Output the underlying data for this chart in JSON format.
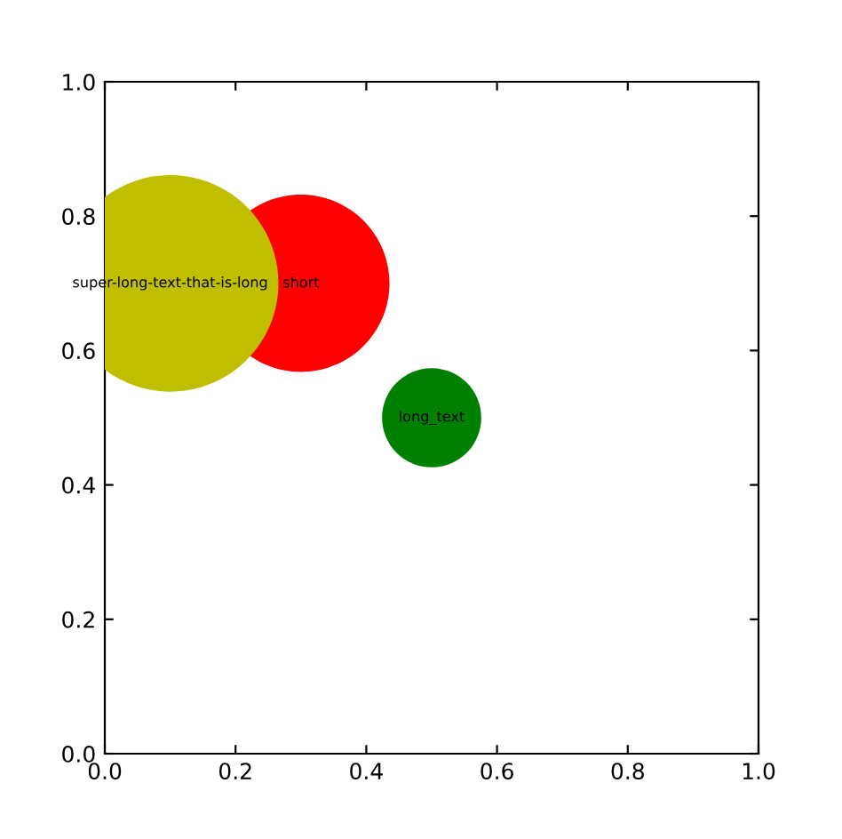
{
  "chart_data": {
    "type": "bubble",
    "x": [
      0.3,
      0.1,
      0.5
    ],
    "values": [
      0.7,
      0.7,
      0.5
    ],
    "sizes": [
      0.67,
      1,
      0.21
    ],
    "colors": [
      "#ff0000",
      "#bfbf00",
      "#008000"
    ],
    "annotations": [
      {
        "text": "short",
        "x": 0.3,
        "y": 0.7
      },
      {
        "text": "super-long-text-that-is-long",
        "x": 0.1,
        "y": 0.7
      },
      {
        "text": "long_text",
        "x": 0.5,
        "y": 0.5
      }
    ],
    "xlim": [
      0,
      1
    ],
    "ylim": [
      0,
      1
    ],
    "xticks": [
      {
        "value": 0,
        "label": "0.0"
      },
      0.2,
      0.4,
      0.6,
      0.8,
      {
        "value": 1,
        "label": "1.0"
      }
    ],
    "yticks": [
      {
        "value": 0,
        "label": "0.0"
      },
      0.2,
      0.4,
      0.6,
      0.8,
      {
        "value": 1,
        "label": "1.0"
      }
    ],
    "grid": false,
    "legend": false
  }
}
